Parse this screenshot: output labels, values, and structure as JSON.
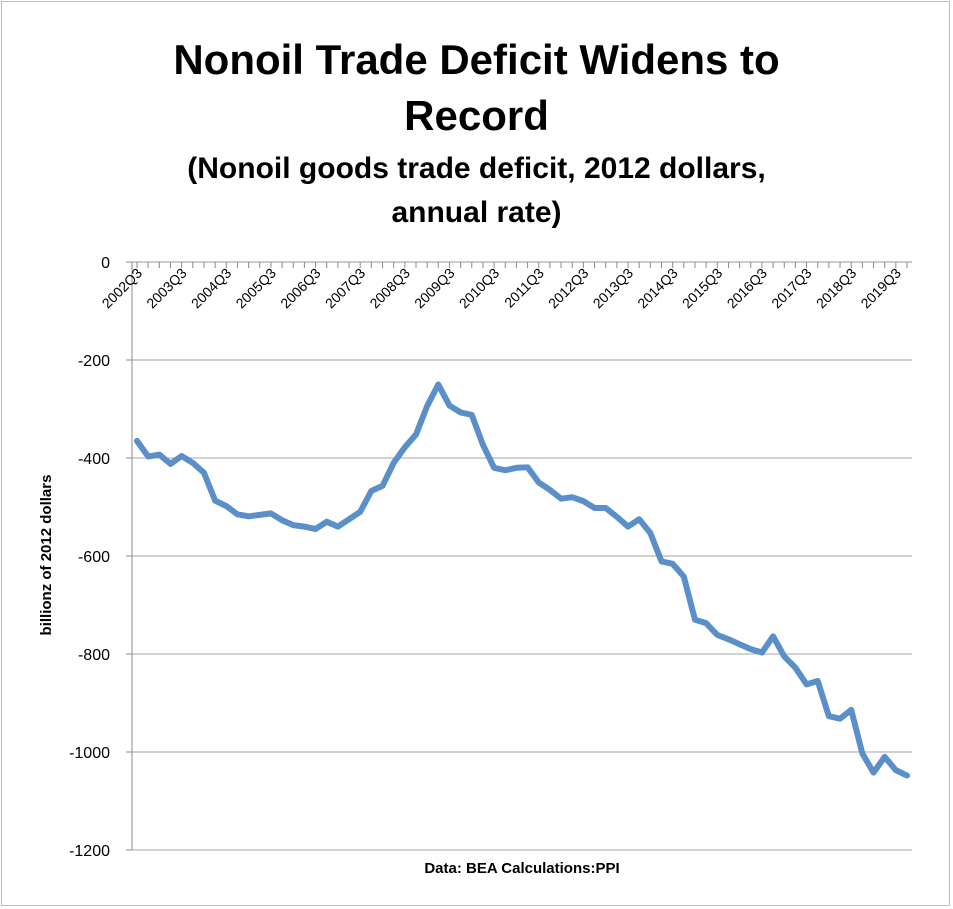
{
  "chart_data": {
    "type": "line",
    "title_lines": [
      "Nonoil Trade Deficit Widens to",
      "Record"
    ],
    "subtitle_lines": [
      "(Nonoil goods trade deficit, 2012 dollars,",
      "annual rate)"
    ],
    "ylabel": "billionz of 2012 dollars",
    "note": "Data: BEA Calculations:PPI",
    "ylim": [
      -1200,
      0
    ],
    "yticks": [
      0,
      -200,
      -400,
      -600,
      -800,
      -1000,
      -1200
    ],
    "xtick_labels": [
      "2002Q3",
      "2003Q3",
      "2004Q3",
      "2005Q3",
      "2006Q3",
      "2007Q3",
      "2008Q3",
      "2009Q3",
      "2010Q3",
      "2011Q3",
      "2012Q3",
      "2013Q3",
      "2014Q3",
      "2015Q3",
      "2016Q3",
      "2017Q3",
      "2018Q3",
      "2019Q3"
    ],
    "grid": "horizontal",
    "line_color": "#5b8fc9",
    "series": [
      {
        "x_start": "2002Q3",
        "values": [
          -365,
          -397,
          -393,
          -412,
          -396,
          -410,
          -430,
          -487,
          -498,
          -515,
          -519,
          -516,
          -513,
          -527,
          -537,
          -540,
          -545,
          -530,
          -540,
          -525,
          -510,
          -467,
          -457,
          -410,
          -378,
          -352,
          -294,
          -250,
          -293,
          -307,
          -312,
          -373,
          -420,
          -425,
          -420,
          -419,
          -450,
          -465,
          -483,
          -480,
          -488,
          -502,
          -502,
          -520,
          -540,
          -525,
          -553,
          -611,
          -616,
          -642,
          -730,
          -737,
          -761,
          -770,
          -780,
          -790,
          -797,
          -764,
          -805,
          -828,
          -862,
          -855,
          -927,
          -932,
          -914,
          -1003,
          -1042,
          -1010,
          -1037,
          -1048
        ]
      }
    ]
  }
}
